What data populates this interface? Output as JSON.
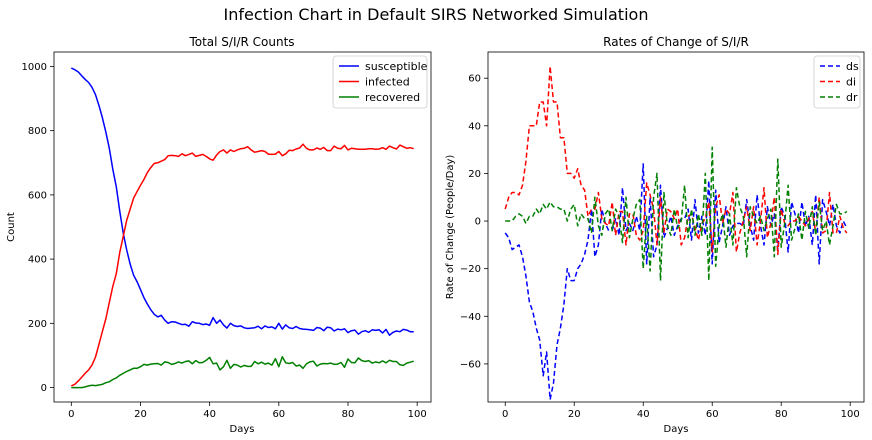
{
  "figure": {
    "suptitle": "Infection Chart in Default SIRS Networked Simulation"
  },
  "chart_data": [
    {
      "type": "line",
      "title": "Total S/I/R Counts",
      "xlabel": "Days",
      "ylabel": "Count",
      "xlim": [
        -5,
        104
      ],
      "ylim": [
        -45,
        1045
      ],
      "xticks": [
        0,
        20,
        40,
        60,
        80,
        100
      ],
      "yticks": [
        0,
        200,
        400,
        600,
        800,
        1000
      ],
      "grid": false,
      "legend": "top-right",
      "x": [
        0,
        1,
        2,
        3,
        4,
        5,
        6,
        7,
        8,
        9,
        10,
        11,
        12,
        13,
        14,
        15,
        16,
        17,
        18,
        19,
        20,
        21,
        22,
        23,
        24,
        25,
        26,
        27,
        28,
        29,
        30,
        31,
        32,
        33,
        34,
        35,
        36,
        37,
        38,
        39,
        40,
        41,
        42,
        43,
        44,
        45,
        46,
        47,
        48,
        49,
        50,
        51,
        52,
        53,
        54,
        55,
        56,
        57,
        58,
        59,
        60,
        61,
        62,
        63,
        64,
        65,
        66,
        67,
        68,
        69,
        70,
        71,
        72,
        73,
        74,
        75,
        76,
        77,
        78,
        79,
        80,
        81,
        82,
        83,
        84,
        85,
        86,
        87,
        88,
        89,
        90,
        91,
        92,
        93,
        94,
        95,
        96,
        97,
        98,
        99
      ],
      "series": [
        {
          "name": "susceptible",
          "color": "#0000ff",
          "dash": "solid",
          "values": [
            995,
            990,
            983,
            971,
            960,
            950,
            935,
            912,
            878,
            840,
            795,
            745,
            680,
            625,
            550,
            482,
            430,
            385,
            350,
            330,
            305,
            280,
            260,
            242,
            228,
            220,
            225,
            210,
            200,
            205,
            204,
            200,
            196,
            197,
            191,
            205,
            201,
            200,
            196,
            198,
            194,
            218,
            200,
            210,
            195,
            185,
            200,
            193,
            190,
            192,
            186,
            184,
            185,
            186,
            191,
            183,
            192,
            187,
            189,
            183,
            200,
            182,
            195,
            186,
            184,
            190,
            184,
            182,
            181,
            180,
            178,
            187,
            185,
            177,
            188,
            186,
            176,
            182,
            180,
            183,
            171,
            177,
            179,
            166,
            174,
            177,
            172,
            180,
            178,
            180,
            170,
            181,
            163,
            172,
            176,
            174,
            181,
            179,
            174,
            174
          ]
        },
        {
          "name": "infected",
          "color": "#ff0000",
          "dash": "solid",
          "values": [
            5,
            10,
            20,
            32,
            44,
            55,
            70,
            95,
            135,
            175,
            215,
            265,
            315,
            355,
            420,
            470,
            520,
            555,
            590,
            610,
            630,
            648,
            670,
            685,
            698,
            700,
            705,
            710,
            722,
            723,
            722,
            720,
            728,
            722,
            726,
            730,
            720,
            723,
            726,
            720,
            712,
            708,
            724,
            735,
            740,
            730,
            740,
            735,
            740,
            744,
            745,
            750,
            740,
            733,
            735,
            738,
            735,
            727,
            726,
            727,
            735,
            722,
            728,
            739,
            738,
            743,
            746,
            758,
            745,
            740,
            740,
            746,
            742,
            748,
            738,
            738,
            752,
            745,
            744,
            754,
            740,
            745,
            744,
            742,
            742,
            742,
            744,
            744,
            742,
            743,
            747,
            742,
            752,
            747,
            743,
            755,
            750,
            745,
            747,
            744
          ]
        },
        {
          "name": "recovered",
          "color": "#008000",
          "dash": "solid",
          "values": [
            0,
            0,
            0,
            0,
            2,
            5,
            7,
            6,
            8,
            10,
            15,
            18,
            25,
            30,
            38,
            44,
            50,
            55,
            60,
            60,
            65,
            72,
            70,
            73,
            74,
            75,
            70,
            80,
            78,
            72,
            75,
            80,
            76,
            81,
            83,
            74,
            84,
            77,
            78,
            85,
            94,
            74,
            76,
            55,
            65,
            85,
            60,
            72,
            70,
            64,
            69,
            66,
            66,
            81,
            74,
            79,
            73,
            76,
            70,
            90,
            65,
            96,
            77,
            75,
            78,
            67,
            70,
            60,
            74,
            80,
            82,
            67,
            73,
            75,
            74,
            76,
            72,
            73,
            78,
            63,
            89,
            78,
            77,
            92,
            84,
            81,
            84,
            76,
            80,
            77,
            83,
            77,
            85,
            81,
            81,
            71,
            69,
            76,
            79,
            82
          ]
        }
      ]
    },
    {
      "type": "line",
      "title": "Rates of Change of S/I/R",
      "xlabel": "Days",
      "ylabel": "Rate of Change (People/Day)",
      "xlim": [
        -5,
        104
      ],
      "ylim": [
        -76,
        71
      ],
      "xticks": [
        0,
        20,
        40,
        60,
        80,
        100
      ],
      "yticks": [
        -60,
        -40,
        -20,
        0,
        20,
        40,
        60
      ],
      "grid": false,
      "legend": "top-right",
      "x": [
        0,
        1,
        2,
        3,
        4,
        5,
        6,
        7,
        8,
        9,
        10,
        11,
        12,
        13,
        14,
        15,
        16,
        17,
        18,
        19,
        20,
        21,
        22,
        23,
        24,
        25,
        26,
        27,
        28,
        29,
        30,
        31,
        32,
        33,
        34,
        35,
        36,
        37,
        38,
        39,
        40,
        41,
        42,
        43,
        44,
        45,
        46,
        47,
        48,
        49,
        50,
        51,
        52,
        53,
        54,
        55,
        56,
        57,
        58,
        59,
        60,
        61,
        62,
        63,
        64,
        65,
        66,
        67,
        68,
        69,
        70,
        71,
        72,
        73,
        74,
        75,
        76,
        77,
        78,
        79,
        80,
        81,
        82,
        83,
        84,
        85,
        86,
        87,
        88,
        89,
        90,
        91,
        92,
        93,
        94,
        95,
        96,
        97,
        98,
        99
      ],
      "series": [
        {
          "name": "ds",
          "color": "#0000ff",
          "dash": "dashed",
          "values": [
            -5,
            -7,
            -12,
            -11,
            -10,
            -15,
            -23,
            -34,
            -38,
            -45,
            -50,
            -65,
            -55,
            -75,
            -68,
            -52,
            -45,
            -35,
            -20,
            -25,
            -25,
            -20,
            -18,
            -14,
            -8,
            5,
            -15,
            -10,
            5,
            -1,
            -4,
            -4,
            1,
            -6,
            14,
            -4,
            -1,
            -4,
            2,
            -4,
            24,
            -18,
            10,
            -15,
            -10,
            15,
            -7,
            -3,
            2,
            -6,
            -2,
            1,
            1,
            5,
            -8,
            9,
            -5,
            2,
            -6,
            17,
            -18,
            13,
            -9,
            -2,
            6,
            -6,
            -2,
            -1,
            -1,
            -2,
            9,
            -2,
            -8,
            11,
            -2,
            -10,
            6,
            -2,
            3,
            -12,
            6,
            2,
            -13,
            8,
            3,
            -5,
            8,
            -2,
            2,
            -10,
            11,
            -18,
            9,
            4,
            -2,
            7,
            -2,
            -5,
            0,
            -3
          ]
        },
        {
          "name": "di",
          "color": "#ff0000",
          "dash": "dashed",
          "values": [
            5,
            10,
            12,
            12,
            11,
            15,
            25,
            40,
            40,
            40,
            50,
            50,
            40,
            65,
            50,
            50,
            35,
            35,
            20,
            20,
            18,
            22,
            15,
            13,
            2,
            5,
            5,
            12,
            1,
            -1,
            -2,
            8,
            -6,
            4,
            4,
            -10,
            3,
            3,
            -6,
            -8,
            -4,
            16,
            11,
            5,
            -10,
            10,
            -5,
            5,
            4,
            1,
            5,
            -10,
            -7,
            2,
            3,
            -3,
            -8,
            -1,
            1,
            8,
            -13,
            6,
            11,
            -1,
            5,
            3,
            12,
            -13,
            -5,
            0,
            6,
            -4,
            6,
            -10,
            0,
            14,
            -7,
            -1,
            10,
            -14,
            5,
            -1,
            -2,
            0,
            0,
            2,
            0,
            -2,
            1,
            4,
            -5,
            10,
            -5,
            -4,
            12,
            -5,
            -5,
            2,
            -3,
            -5
          ]
        },
        {
          "name": "dr",
          "color": "#008000",
          "dash": "dashed",
          "values": [
            0,
            0,
            0,
            2,
            3,
            2,
            -1,
            2,
            2,
            5,
            3,
            7,
            5,
            8,
            6,
            6,
            5,
            5,
            0,
            5,
            7,
            -2,
            3,
            1,
            1,
            -5,
            10,
            -2,
            -6,
            3,
            5,
            -4,
            5,
            2,
            -9,
            10,
            -7,
            1,
            7,
            9,
            -20,
            2,
            -21,
            10,
            20,
            -25,
            12,
            -2,
            -6,
            5,
            -3,
            0,
            15,
            -7,
            5,
            -6,
            3,
            -6,
            20,
            -25,
            31,
            -19,
            -2,
            3,
            -11,
            3,
            -10,
            14,
            6,
            2,
            -15,
            6,
            2,
            -1,
            2,
            -4,
            1,
            5,
            -15,
            26,
            -11,
            -1,
            15,
            -8,
            -3,
            3,
            -8,
            4,
            -3,
            6,
            -6,
            8,
            -4,
            0,
            -10,
            -2,
            7,
            3,
            3,
            4
          ]
        }
      ]
    }
  ]
}
